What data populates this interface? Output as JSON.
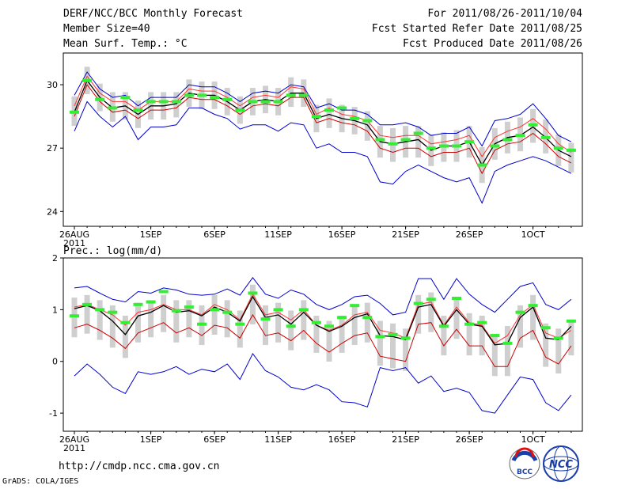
{
  "header": {
    "title": "DERF/NCC/BCC Monthly Forecast",
    "member_size": "Member Size=40",
    "variable": "Mean Surf. Temp.: °C",
    "period": "For 2011/08/26-2011/10/04",
    "started": "Fcst Started Refer Date 2011/08/25",
    "produced": "Fcst Produced Date 2011/08/26"
  },
  "precip_label": "Prec.: log(mm/d)",
  "footer": {
    "url": "http://cmdp.ncc.cma.gov.cn",
    "credit": "GrADS: COLA/IGES",
    "logo_bcc": "BCC",
    "logo_ncc": "NCC"
  },
  "x_ticks": [
    {
      "day": 0,
      "label": "26AUG",
      "sub": "2011"
    },
    {
      "day": 6,
      "label": "1SEP",
      "sub": ""
    },
    {
      "day": 11,
      "label": "6SEP",
      "sub": ""
    },
    {
      "day": 16,
      "label": "11SEP",
      "sub": ""
    },
    {
      "day": 21,
      "label": "16SEP",
      "sub": ""
    },
    {
      "day": 26,
      "label": "21SEP",
      "sub": ""
    },
    {
      "day": 31,
      "label": "26SEP",
      "sub": ""
    },
    {
      "day": 36,
      "label": "1OCT",
      "sub": ""
    }
  ],
  "colors": {
    "max_line": "#0000cc",
    "upper_line": "#ff3333",
    "lower_line": "#cc0000",
    "mean_line": "#000000",
    "median_mark": "#33ee33",
    "spread_bar": "#cfcfcf"
  },
  "chart_data": [
    {
      "type": "line",
      "title": "Mean Surf. Temp.: °C",
      "ylim": [
        23.3,
        31.5
      ],
      "y_ticks": [
        24,
        27,
        30
      ],
      "x": [
        0,
        1,
        2,
        3,
        4,
        5,
        6,
        7,
        8,
        9,
        10,
        11,
        12,
        13,
        14,
        15,
        16,
        17,
        18,
        19,
        20,
        21,
        22,
        23,
        24,
        25,
        26,
        27,
        28,
        29,
        30,
        31,
        32,
        33,
        34,
        35,
        36,
        37,
        38,
        39
      ],
      "series": [
        {
          "name": "max",
          "values": [
            29.5,
            30.6,
            29.8,
            29.4,
            29.5,
            29.0,
            29.4,
            29.4,
            29.4,
            30.0,
            29.9,
            29.9,
            29.6,
            29.2,
            29.6,
            29.7,
            29.6,
            30.0,
            29.9,
            28.9,
            29.1,
            28.8,
            28.8,
            28.6,
            28.1,
            28.1,
            28.2,
            28.0,
            27.6,
            27.7,
            27.7,
            28.0,
            27.1,
            28.3,
            28.4,
            28.6,
            29.1,
            28.4,
            27.6,
            27.3
          ]
        },
        {
          "name": "upper",
          "values": [
            29.0,
            30.4,
            29.6,
            29.2,
            29.2,
            28.8,
            29.2,
            29.2,
            29.2,
            29.8,
            29.7,
            29.7,
            29.4,
            29.0,
            29.4,
            29.5,
            29.4,
            29.9,
            29.8,
            28.6,
            28.9,
            28.6,
            28.5,
            28.3,
            27.6,
            27.5,
            27.6,
            27.6,
            27.2,
            27.3,
            27.4,
            27.6,
            26.6,
            27.5,
            27.8,
            28.0,
            28.4,
            27.9,
            27.2,
            26.8
          ]
        },
        {
          "name": "mean",
          "values": [
            28.7,
            30.2,
            29.4,
            28.9,
            29.0,
            28.6,
            29.0,
            29.0,
            29.1,
            29.6,
            29.5,
            29.5,
            29.2,
            28.8,
            29.2,
            29.3,
            29.2,
            29.6,
            29.6,
            28.4,
            28.6,
            28.4,
            28.3,
            28.1,
            27.3,
            27.2,
            27.3,
            27.4,
            26.9,
            27.1,
            27.1,
            27.3,
            26.2,
            27.2,
            27.5,
            27.6,
            28.0,
            27.5,
            26.9,
            26.6
          ]
        },
        {
          "name": "lower",
          "values": [
            28.5,
            30.0,
            29.2,
            28.7,
            28.8,
            28.4,
            28.8,
            28.8,
            28.9,
            29.4,
            29.3,
            29.3,
            29.0,
            28.6,
            29.0,
            29.1,
            29.0,
            29.4,
            29.4,
            28.2,
            28.4,
            28.2,
            28.1,
            27.8,
            27.0,
            26.8,
            27.0,
            27.0,
            26.6,
            26.8,
            26.8,
            27.0,
            25.8,
            26.9,
            27.2,
            27.3,
            27.7,
            27.2,
            26.6,
            26.3
          ]
        },
        {
          "name": "min",
          "values": [
            27.8,
            29.2,
            28.5,
            28.0,
            28.5,
            27.4,
            28.0,
            28.0,
            28.1,
            28.9,
            28.9,
            28.6,
            28.4,
            27.9,
            28.1,
            28.1,
            27.8,
            28.2,
            28.1,
            27.0,
            27.2,
            26.8,
            26.8,
            26.6,
            25.4,
            25.3,
            25.9,
            26.2,
            25.9,
            25.6,
            25.4,
            25.6,
            24.4,
            25.9,
            26.2,
            26.4,
            26.6,
            26.4,
            26.1,
            25.8
          ]
        },
        {
          "name": "median",
          "values": [
            28.7,
            30.2,
            29.3,
            28.9,
            29.4,
            28.8,
            29.2,
            29.2,
            29.2,
            29.5,
            29.5,
            29.4,
            29.3,
            28.8,
            29.2,
            29.2,
            29.2,
            29.5,
            29.5,
            28.5,
            28.8,
            28.9,
            28.4,
            28.3,
            27.4,
            27.2,
            27.4,
            27.7,
            27.0,
            27.1,
            27.1,
            27.3,
            26.2,
            27.1,
            27.4,
            27.6,
            28.1,
            27.5,
            27.0,
            26.9
          ]
        }
      ]
    },
    {
      "type": "line",
      "title": "Prec.: log(mm/d)",
      "ylim": [
        -1.35,
        2.0
      ],
      "y_ticks": [
        -1,
        0,
        1,
        2
      ],
      "x": [
        0,
        1,
        2,
        3,
        4,
        5,
        6,
        7,
        8,
        9,
        10,
        11,
        12,
        13,
        14,
        15,
        16,
        17,
        18,
        19,
        20,
        21,
        22,
        23,
        24,
        25,
        26,
        27,
        28,
        29,
        30,
        31,
        32,
        33,
        34,
        35,
        36,
        37,
        38,
        39
      ],
      "series": [
        {
          "name": "max",
          "values": [
            1.42,
            1.45,
            1.32,
            1.2,
            1.15,
            1.35,
            1.32,
            1.42,
            1.38,
            1.3,
            1.28,
            1.3,
            1.4,
            1.28,
            1.62,
            1.3,
            1.22,
            1.38,
            1.3,
            1.1,
            1.0,
            1.1,
            1.25,
            1.28,
            1.12,
            0.9,
            0.95,
            1.6,
            1.6,
            1.2,
            1.6,
            1.3,
            1.1,
            0.95,
            1.2,
            1.45,
            1.52,
            1.1,
            1.0,
            1.2
          ]
        },
        {
          "name": "upper",
          "values": [
            1.05,
            1.1,
            1.0,
            0.9,
            0.7,
            0.95,
            1.0,
            1.1,
            1.0,
            1.0,
            0.9,
            1.1,
            1.0,
            0.8,
            1.3,
            0.9,
            0.95,
            0.8,
            1.0,
            0.7,
            0.6,
            0.7,
            0.9,
            0.95,
            0.6,
            0.55,
            0.45,
            1.1,
            1.15,
            0.7,
            1.05,
            0.75,
            0.7,
            0.35,
            0.5,
            0.9,
            1.1,
            0.55,
            0.45,
            0.6
          ]
        },
        {
          "name": "mean",
          "values": [
            1.02,
            1.08,
            0.98,
            0.78,
            0.52,
            0.88,
            0.95,
            1.08,
            0.95,
            0.98,
            0.88,
            1.05,
            0.95,
            0.78,
            1.25,
            0.85,
            0.9,
            0.72,
            0.95,
            0.7,
            0.58,
            0.68,
            0.85,
            0.92,
            0.5,
            0.48,
            0.42,
            1.05,
            1.1,
            0.68,
            1.0,
            0.72,
            0.68,
            0.32,
            0.35,
            0.85,
            1.05,
            0.45,
            0.42,
            0.68
          ]
        },
        {
          "name": "lower",
          "values": [
            0.65,
            0.72,
            0.6,
            0.45,
            0.25,
            0.55,
            0.65,
            0.75,
            0.55,
            0.65,
            0.5,
            0.7,
            0.65,
            0.45,
            0.9,
            0.5,
            0.55,
            0.4,
            0.6,
            0.35,
            0.18,
            0.35,
            0.5,
            0.55,
            0.1,
            0.05,
            0.0,
            0.72,
            0.75,
            0.3,
            0.62,
            0.3,
            0.3,
            -0.1,
            -0.1,
            0.45,
            0.6,
            0.08,
            -0.05,
            0.3
          ]
        },
        {
          "name": "min",
          "values": [
            -0.28,
            -0.05,
            -0.25,
            -0.5,
            -0.62,
            -0.2,
            -0.25,
            -0.2,
            -0.1,
            -0.25,
            -0.15,
            -0.2,
            -0.05,
            -0.35,
            0.15,
            -0.18,
            -0.3,
            -0.5,
            -0.55,
            -0.45,
            -0.55,
            -0.78,
            -0.8,
            -0.88,
            -0.12,
            -0.18,
            -0.12,
            -0.42,
            -0.28,
            -0.58,
            -0.52,
            -0.6,
            -0.95,
            -1.0,
            -0.65,
            -0.3,
            -0.35,
            -0.8,
            -0.95,
            -0.65
          ]
        },
        {
          "name": "median",
          "values": [
            0.88,
            1.1,
            1.0,
            0.95,
            0.75,
            1.1,
            1.15,
            1.35,
            0.98,
            1.05,
            0.72,
            1.0,
            0.95,
            0.72,
            1.32,
            0.82,
            1.0,
            0.68,
            1.0,
            0.75,
            0.68,
            0.85,
            1.08,
            0.85,
            0.48,
            0.52,
            0.45,
            1.12,
            1.2,
            0.68,
            1.22,
            0.72,
            0.75,
            0.5,
            0.35,
            0.95,
            1.08,
            0.65,
            0.45,
            0.78
          ]
        }
      ]
    }
  ]
}
